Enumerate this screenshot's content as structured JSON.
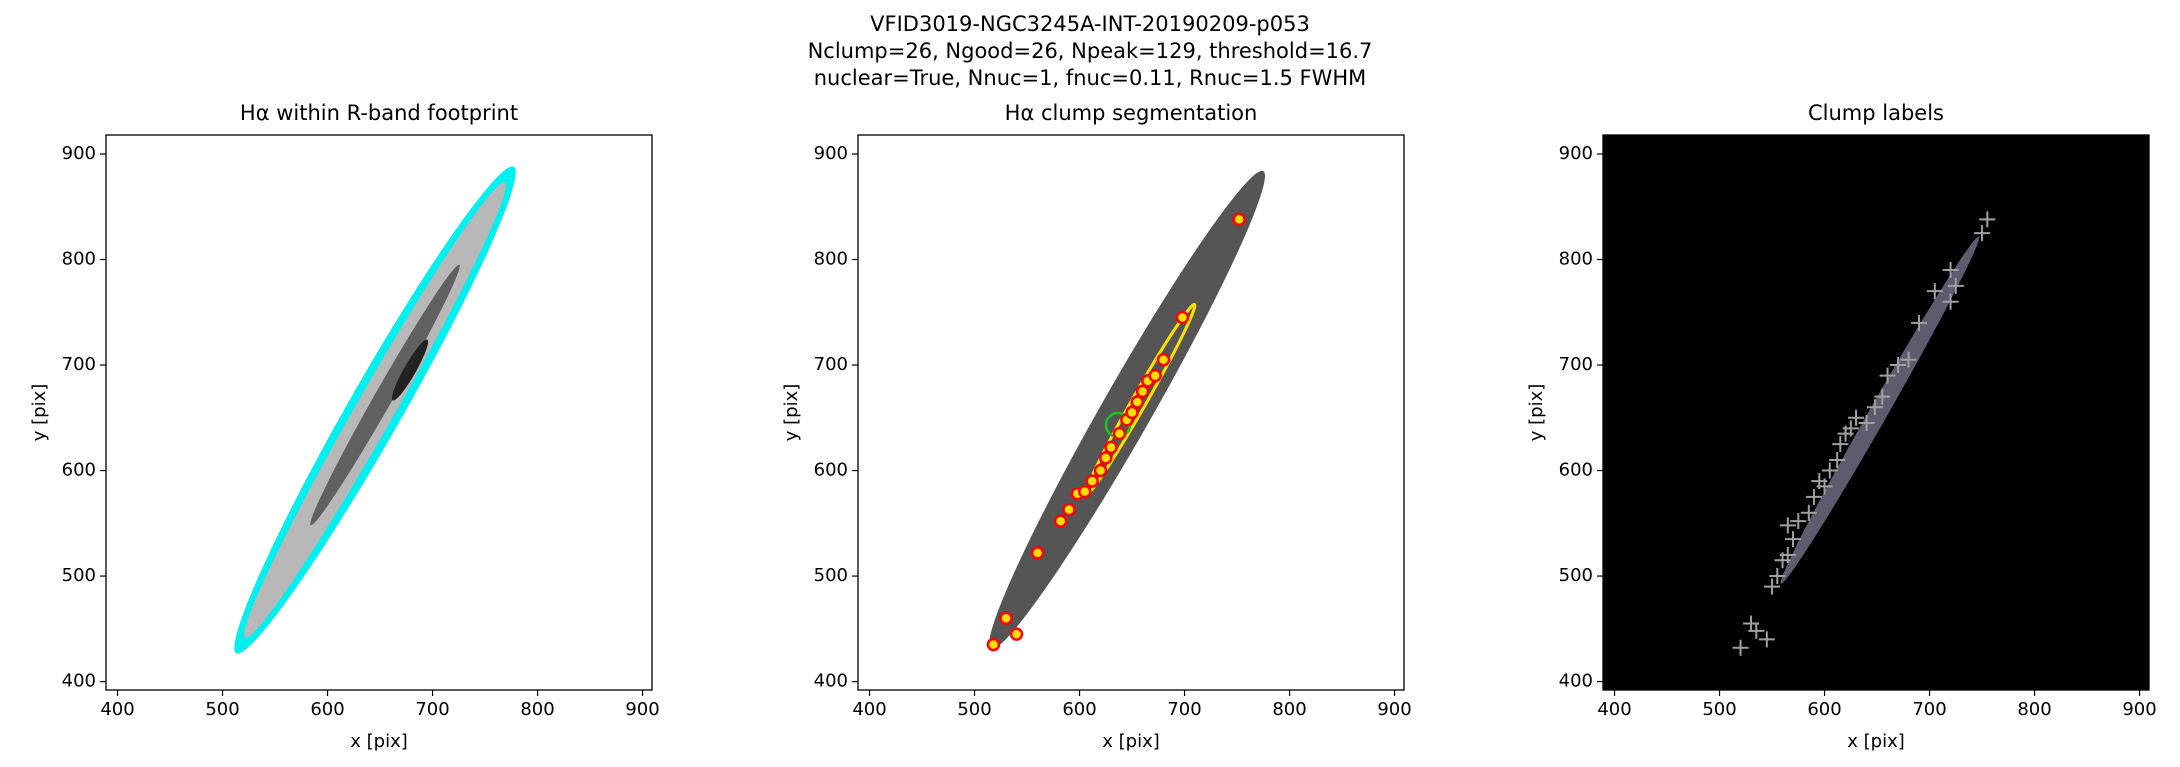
{
  "figure_title": [
    "VFID3019-NGC3245A-INT-20190209-p053",
    "Nclump=26, Ngood=26, Npeak=129, threshold=16.7",
    "nuclear=True, Nnuc=1, fnuc=0.11, Rnuc=1.5 FWHM"
  ],
  "chart_data": [
    {
      "type": "image",
      "title": "Hα within R-band footprint",
      "xlabel": "x [pix]",
      "ylabel": "y [pix]",
      "xlim": [
        389,
        909
      ],
      "ylim": [
        392,
        918
      ],
      "xticks": [
        400,
        500,
        600,
        700,
        800,
        900
      ],
      "yticks": [
        400,
        500,
        600,
        700,
        800,
        900
      ],
      "background": "#ffffff"
    },
    {
      "type": "scatter",
      "title": "Hα clump segmentation",
      "xlabel": "x [pix]",
      "ylabel": "y [pix]",
      "xlim": [
        389,
        909
      ],
      "ylim": [
        392,
        918
      ],
      "xticks": [
        400,
        500,
        600,
        700,
        800,
        900
      ],
      "yticks": [
        400,
        500,
        600,
        700,
        800,
        900
      ],
      "background": "#ffffff",
      "series": [
        {
          "color": "#ff0000",
          "marker": "circle",
          "x": [
            518,
            530,
            540,
            560,
            582,
            590,
            598,
            605,
            612,
            620,
            625,
            630,
            638,
            645,
            650,
            655,
            660,
            665,
            672,
            680,
            698,
            752
          ],
          "y": [
            435,
            460,
            445,
            522,
            552,
            563,
            578,
            580,
            590,
            600,
            612,
            622,
            635,
            648,
            655,
            665,
            675,
            685,
            690,
            705,
            745,
            838
          ]
        }
      ]
    },
    {
      "type": "scatter",
      "title": "Clump labels",
      "xlabel": "x [pix]",
      "ylabel": "y [pix]",
      "xlim": [
        389,
        909
      ],
      "ylim": [
        392,
        918
      ],
      "xticks": [
        400,
        500,
        600,
        700,
        800,
        900
      ],
      "yticks": [
        400,
        500,
        600,
        700,
        800,
        900
      ],
      "background": "#000000",
      "series": [
        {
          "color": "#a0a0a0",
          "marker": "plus",
          "x": [
            520,
            530,
            535,
            545,
            550,
            555,
            560,
            565,
            570,
            565,
            575,
            585,
            590,
            595,
            600,
            605,
            612,
            615,
            620,
            625,
            630,
            640,
            648,
            655,
            660,
            670,
            680,
            690,
            705,
            720,
            725,
            720,
            750,
            755
          ],
          "y": [
            432,
            455,
            448,
            440,
            490,
            500,
            515,
            520,
            535,
            548,
            552,
            560,
            575,
            590,
            585,
            600,
            610,
            625,
            635,
            640,
            650,
            645,
            660,
            670,
            690,
            700,
            705,
            740,
            770,
            790,
            775,
            760,
            825,
            838
          ]
        }
      ]
    }
  ]
}
